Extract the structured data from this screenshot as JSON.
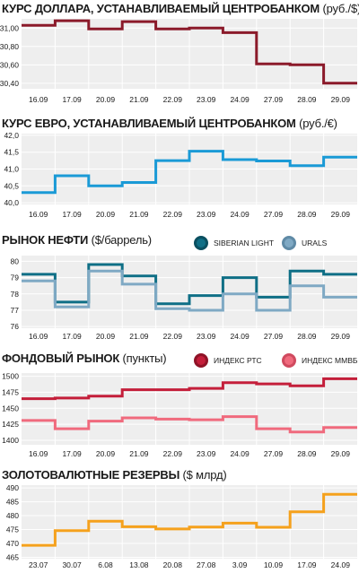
{
  "chart_data": [
    {
      "type": "line",
      "title": "КУРС ДОЛЛАРА, УСТАНАВЛИВАЕМЫЙ ЦЕНТРОБАНКОМ",
      "unit": "(руб./$)",
      "categories": [
        "16.09",
        "17.09",
        "20.09",
        "21.09",
        "22.09",
        "23.09",
        "24.09",
        "27.09",
        "28.09",
        "29.09"
      ],
      "yticks": [
        "31,00",
        "30,80",
        "30,60",
        "30,40"
      ],
      "ylim": [
        30.34,
        31.1
      ],
      "series": [
        {
          "color": "#8b1a2a",
          "values": [
            31.03,
            31.08,
            30.99,
            31.07,
            30.99,
            31.0,
            30.95,
            30.61,
            30.6,
            30.4
          ]
        }
      ]
    },
    {
      "type": "line",
      "title": "КУРС ЕВРО, УСТАНАВЛИВАЕМЫЙ ЦЕНТРОБАНКОМ",
      "unit": "(руб./€)",
      "categories": [
        "16.09",
        "17.09",
        "20.09",
        "21.09",
        "22.09",
        "23.09",
        "24.09",
        "27.09",
        "28.09",
        "29.09"
      ],
      "yticks": [
        "42,0",
        "41,5",
        "41,0",
        "40,5",
        "40,0"
      ],
      "ylim": [
        39.95,
        42.05
      ],
      "series": [
        {
          "color": "#1a9ad6",
          "values": [
            40.3,
            40.8,
            40.5,
            40.6,
            41.25,
            41.53,
            41.28,
            41.24,
            41.1,
            41.35
          ]
        }
      ]
    },
    {
      "type": "line",
      "title": "РЫНОК НЕФТИ",
      "unit": "($/баррель)",
      "categories": [
        "16.09",
        "17.09",
        "20.09",
        "21.09",
        "22.09",
        "23.09",
        "24.09",
        "27.09",
        "28.09",
        "29.09"
      ],
      "yticks": [
        "80",
        "79",
        "78",
        "77",
        "76"
      ],
      "ylim": [
        75.9,
        80.35
      ],
      "series": [
        {
          "name": "SIBERIAN LIGHT",
          "color": "#0f6f86",
          "values": [
            79.2,
            77.5,
            79.8,
            79.1,
            77.4,
            77.9,
            79.0,
            77.8,
            79.4,
            79.2
          ]
        },
        {
          "name": "URALS",
          "color": "#7fa9c4",
          "values": [
            78.8,
            77.2,
            79.4,
            78.6,
            77.1,
            77.0,
            78.0,
            77.0,
            78.5,
            77.8
          ]
        }
      ]
    },
    {
      "type": "line",
      "title": "ФОНДОВЫЙ РЫНОК",
      "unit": "(пункты)",
      "categories": [
        "16.09",
        "17.09",
        "20.09",
        "21.09",
        "22.09",
        "23.09",
        "24.09",
        "27.09",
        "28.09",
        "29.09"
      ],
      "yticks": [
        "1500",
        "1475",
        "1450",
        "1425",
        "1400"
      ],
      "ylim": [
        1393,
        1505
      ],
      "series": [
        {
          "name": "ИНДЕКС РТС",
          "color": "#c41e3a",
          "values": [
            1465,
            1466,
            1469,
            1479,
            1479,
            1481,
            1490,
            1488,
            1485,
            1496
          ]
        },
        {
          "name": "ИНДЕКС ММВБ",
          "color": "#f06a7d",
          "values": [
            1431,
            1418,
            1430,
            1435,
            1433,
            1432,
            1437,
            1418,
            1413,
            1420
          ]
        }
      ]
    },
    {
      "type": "line",
      "title": "ЗОЛОТОВАЛЮТНЫЕ РЕЗЕРВЫ",
      "unit": "($ млрд)",
      "categories": [
        "23.07",
        "30.07",
        "6.08",
        "13.08",
        "20.08",
        "27.08",
        "3.09",
        "10.09",
        "17.09",
        "24.09"
      ],
      "yticks": [
        "490",
        "485",
        "480",
        "475",
        "470",
        "465"
      ],
      "ylim": [
        464.5,
        491
      ],
      "series": [
        {
          "color": "#f5a11c",
          "values": [
            469.3,
            474.6,
            478.0,
            476.0,
            475.2,
            475.9,
            477.3,
            475.8,
            481.4,
            487.7
          ]
        }
      ]
    }
  ]
}
